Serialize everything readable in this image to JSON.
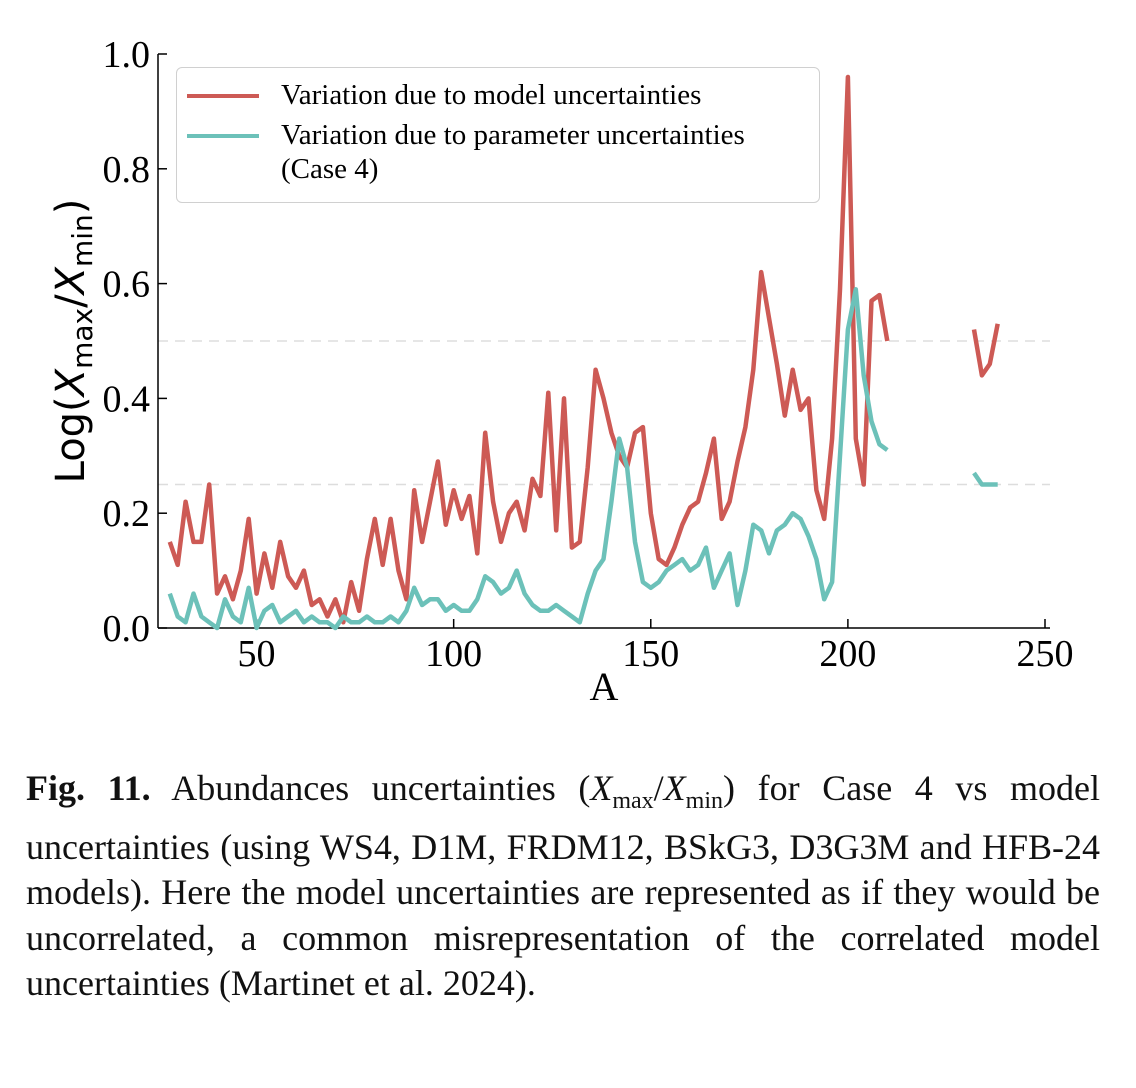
{
  "chart_data": {
    "type": "line",
    "xlabel": "A",
    "ylabel": [
      "Log(",
      "X",
      "max",
      "/",
      "X",
      "min",
      ")"
    ],
    "x": [
      28,
      30,
      32,
      34,
      36,
      38,
      40,
      42,
      44,
      46,
      48,
      50,
      52,
      54,
      56,
      58,
      60,
      62,
      64,
      66,
      68,
      70,
      72,
      74,
      76,
      78,
      80,
      82,
      84,
      86,
      88,
      90,
      92,
      94,
      96,
      98,
      100,
      102,
      104,
      106,
      108,
      110,
      112,
      114,
      116,
      118,
      120,
      122,
      124,
      126,
      128,
      130,
      132,
      134,
      136,
      138,
      140,
      142,
      144,
      146,
      148,
      150,
      152,
      154,
      156,
      158,
      160,
      162,
      164,
      166,
      168,
      170,
      172,
      174,
      176,
      178,
      180,
      182,
      184,
      186,
      188,
      190,
      192,
      194,
      196,
      198,
      200,
      202,
      204,
      206,
      208,
      210,
      212,
      214,
      216,
      218,
      220,
      222,
      224,
      226,
      228,
      230,
      232,
      234,
      236,
      238
    ],
    "series": [
      {
        "name": "Variation due to model uncertainties",
        "color": "#cd5a55",
        "values": [
          0.15,
          0.11,
          0.22,
          0.15,
          0.15,
          0.25,
          0.06,
          0.09,
          0.05,
          0.1,
          0.19,
          0.06,
          0.13,
          0.07,
          0.15,
          0.09,
          0.07,
          0.1,
          0.04,
          0.05,
          0.02,
          0.05,
          0.01,
          0.08,
          0.03,
          0.12,
          0.19,
          0.11,
          0.19,
          0.1,
          0.05,
          0.24,
          0.15,
          0.22,
          0.29,
          0.18,
          0.24,
          0.19,
          0.23,
          0.13,
          0.34,
          0.22,
          0.15,
          0.2,
          0.22,
          0.17,
          0.26,
          0.23,
          0.41,
          0.17,
          0.4,
          0.14,
          0.15,
          0.28,
          0.45,
          0.4,
          0.34,
          0.3,
          0.28,
          0.34,
          0.35,
          0.2,
          0.12,
          0.11,
          0.14,
          0.18,
          0.21,
          0.22,
          0.27,
          0.33,
          0.19,
          0.22,
          0.29,
          0.35,
          0.45,
          0.62,
          0.54,
          0.46,
          0.37,
          0.45,
          0.38,
          0.4,
          0.24,
          0.19,
          0.33,
          0.59,
          0.96,
          0.33,
          0.25,
          0.57,
          0.58,
          0.5,
          null,
          null,
          null,
          null,
          null,
          null,
          null,
          null,
          null,
          null,
          0.52,
          0.44,
          0.46,
          0.53
        ]
      },
      {
        "name": "Variation due to parameter uncertainties (Case 4)",
        "color": "#6cc1b9",
        "values": [
          0.06,
          0.02,
          0.01,
          0.06,
          0.02,
          0.01,
          0.0,
          0.05,
          0.02,
          0.01,
          0.07,
          0.0,
          0.03,
          0.04,
          0.01,
          0.02,
          0.03,
          0.01,
          0.02,
          0.01,
          0.01,
          0.0,
          0.02,
          0.01,
          0.01,
          0.02,
          0.01,
          0.01,
          0.02,
          0.01,
          0.03,
          0.07,
          0.04,
          0.05,
          0.05,
          0.03,
          0.04,
          0.03,
          0.03,
          0.05,
          0.09,
          0.08,
          0.06,
          0.07,
          0.1,
          0.06,
          0.04,
          0.03,
          0.03,
          0.04,
          0.03,
          0.02,
          0.01,
          0.06,
          0.1,
          0.12,
          0.22,
          0.33,
          0.28,
          0.15,
          0.08,
          0.07,
          0.08,
          0.1,
          0.11,
          0.12,
          0.1,
          0.11,
          0.14,
          0.07,
          0.1,
          0.13,
          0.04,
          0.1,
          0.18,
          0.17,
          0.13,
          0.17,
          0.18,
          0.2,
          0.19,
          0.16,
          0.12,
          0.05,
          0.08,
          0.3,
          0.52,
          0.59,
          0.44,
          0.36,
          0.32,
          0.31,
          null,
          null,
          null,
          null,
          null,
          null,
          null,
          null,
          null,
          null,
          0.27,
          0.25,
          0.25,
          0.25
        ]
      }
    ],
    "xlim": [
      25,
      250
    ],
    "xticks": [
      50,
      100,
      150,
      200,
      250
    ],
    "ylim": [
      0,
      1
    ],
    "yticks": [
      {
        "value": 0,
        "label": "0.0"
      },
      0.2,
      0.4,
      0.6,
      0.8,
      {
        "value": 1,
        "label": "1.0"
      }
    ],
    "hlines": [
      0.25,
      0.5
    ],
    "legend": "upper left"
  },
  "caption": {
    "label": "Fig. 11.",
    "before": "Abundances uncertainties (",
    "var1": "X",
    "sub1": "max",
    "slash": "/",
    "var2": "X",
    "sub2": "min",
    "after": ") for Case 4 vs model uncertainties (using WS4, D1M, FRDM12, BSkG3, D3G3M and HFB-24 models). Here the model uncertainties are represented as if they would be uncorrelated, a common misrepresentation of the correlated model uncertainties (Martinet et al. 2024)."
  }
}
